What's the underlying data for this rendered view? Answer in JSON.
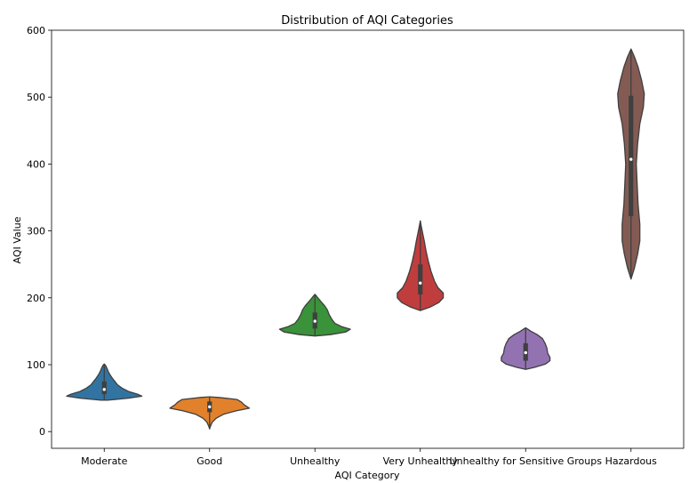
{
  "chart_data": {
    "type": "violin",
    "title": "Distribution of AQI Categories",
    "xlabel": "AQI Category",
    "ylabel": "AQI Value",
    "ylim": [
      -25,
      600
    ],
    "yticks": [
      0,
      100,
      200,
      300,
      400,
      500,
      600
    ],
    "grid": false,
    "legend": "none",
    "categories": [
      "Moderate",
      "Good",
      "Unhealthy",
      "Very Unhealthy",
      "Unhealthy for Sensitive Groups",
      "Hazardous"
    ],
    "series": [
      {
        "category": "Moderate",
        "color": "#3274a1",
        "min": 47,
        "max": 101,
        "q1": 56,
        "median": 63,
        "q3": 75,
        "profile": [
          [
            47,
            0.08
          ],
          [
            50,
            0.55
          ],
          [
            53,
            0.85
          ],
          [
            56,
            0.75
          ],
          [
            60,
            0.55
          ],
          [
            65,
            0.4
          ],
          [
            70,
            0.3
          ],
          [
            75,
            0.24
          ],
          [
            80,
            0.18
          ],
          [
            85,
            0.13
          ],
          [
            90,
            0.09
          ],
          [
            95,
            0.06
          ],
          [
            99,
            0.03
          ],
          [
            101,
            0.0
          ]
        ]
      },
      {
        "category": "Good",
        "color": "#e1812c",
        "min": 4,
        "max": 52,
        "q1": 29,
        "median": 37,
        "q3": 45,
        "profile": [
          [
            4,
            0.0
          ],
          [
            8,
            0.02
          ],
          [
            14,
            0.06
          ],
          [
            20,
            0.15
          ],
          [
            26,
            0.32
          ],
          [
            31,
            0.6
          ],
          [
            35,
            0.9
          ],
          [
            40,
            0.78
          ],
          [
            44,
            0.72
          ],
          [
            48,
            0.62
          ],
          [
            51,
            0.2
          ],
          [
            52,
            0.0
          ]
        ]
      },
      {
        "category": "Unhealthy",
        "color": "#3a923a",
        "min": 143,
        "max": 205,
        "q1": 154,
        "median": 165,
        "q3": 178,
        "profile": [
          [
            143,
            0.0
          ],
          [
            145,
            0.35
          ],
          [
            149,
            0.7
          ],
          [
            153,
            0.8
          ],
          [
            157,
            0.6
          ],
          [
            162,
            0.45
          ],
          [
            168,
            0.38
          ],
          [
            175,
            0.32
          ],
          [
            182,
            0.28
          ],
          [
            188,
            0.22
          ],
          [
            194,
            0.14
          ],
          [
            199,
            0.08
          ],
          [
            203,
            0.03
          ],
          [
            205,
            0.0
          ]
        ]
      },
      {
        "category": "Very Unhealthy",
        "color": "#c03d3e",
        "min": 181,
        "max": 315,
        "q1": 205,
        "median": 222,
        "q3": 250,
        "profile": [
          [
            181,
            0.0
          ],
          [
            186,
            0.22
          ],
          [
            193,
            0.42
          ],
          [
            200,
            0.52
          ],
          [
            207,
            0.52
          ],
          [
            215,
            0.4
          ],
          [
            225,
            0.32
          ],
          [
            240,
            0.24
          ],
          [
            255,
            0.18
          ],
          [
            270,
            0.13
          ],
          [
            285,
            0.09
          ],
          [
            298,
            0.05
          ],
          [
            308,
            0.02
          ],
          [
            315,
            0.0
          ]
        ]
      },
      {
        "category": "Unhealthy for Sensitive Groups",
        "color": "#9372b2",
        "min": 93,
        "max": 155,
        "q1": 106,
        "median": 118,
        "q3": 132,
        "profile": [
          [
            93,
            0.0
          ],
          [
            96,
            0.2
          ],
          [
            101,
            0.45
          ],
          [
            106,
            0.55
          ],
          [
            111,
            0.55
          ],
          [
            117,
            0.5
          ],
          [
            125,
            0.48
          ],
          [
            132,
            0.44
          ],
          [
            139,
            0.38
          ],
          [
            145,
            0.26
          ],
          [
            150,
            0.12
          ],
          [
            153,
            0.05
          ],
          [
            155,
            0.0
          ]
        ]
      },
      {
        "category": "Hazardous",
        "color": "#845b53",
        "min": 228,
        "max": 572,
        "q1": 322,
        "median": 407,
        "q3": 502,
        "profile": [
          [
            228,
            0.0
          ],
          [
            245,
            0.08
          ],
          [
            265,
            0.15
          ],
          [
            285,
            0.2
          ],
          [
            310,
            0.2
          ],
          [
            340,
            0.16
          ],
          [
            370,
            0.14
          ],
          [
            400,
            0.12
          ],
          [
            430,
            0.15
          ],
          [
            460,
            0.2
          ],
          [
            485,
            0.28
          ],
          [
            505,
            0.3
          ],
          [
            525,
            0.24
          ],
          [
            545,
            0.16
          ],
          [
            560,
            0.08
          ],
          [
            572,
            0.0
          ]
        ]
      }
    ]
  }
}
